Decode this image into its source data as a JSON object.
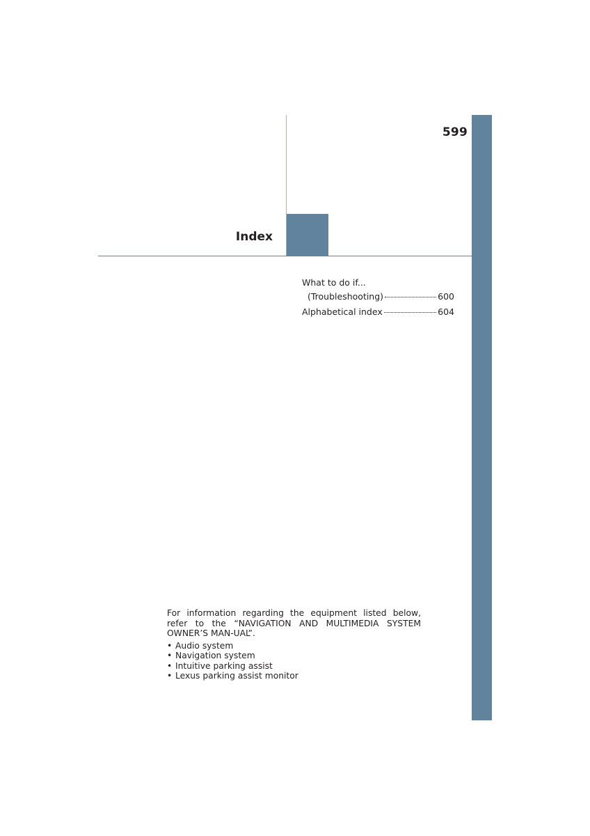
{
  "page": {
    "number": "599",
    "section_title": "Index"
  },
  "toc": {
    "entries": [
      {
        "label": "What to do if...",
        "page": ""
      },
      {
        "label": "(Troubleshooting)",
        "page": "600"
      },
      {
        "label": "Alphabetical index",
        "page": "604"
      }
    ]
  },
  "note": {
    "text": "For information regarding the equipment listed below, refer to the “NAVIGATION AND MULTIMEDIA SYSTEM OWNER’S MAN-UAL”.",
    "bullet_glyph": "•",
    "items": [
      "Audio system",
      "Navigation system",
      "Intuitive parking assist",
      "Lexus parking assist monitor"
    ]
  },
  "colors": {
    "accent": "#62839d",
    "text": "#231f20"
  }
}
